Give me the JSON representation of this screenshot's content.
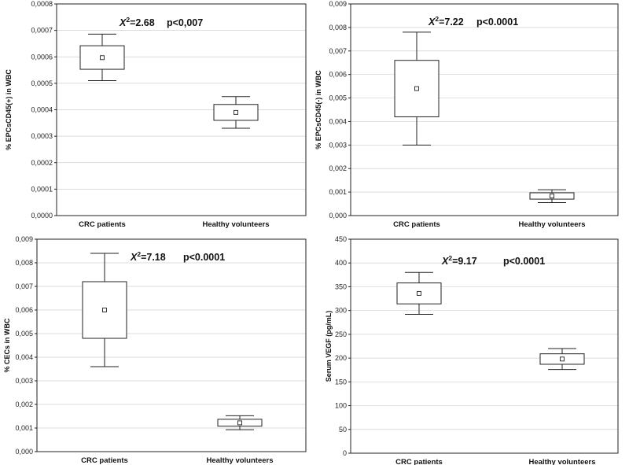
{
  "chart_data": [
    {
      "type": "box",
      "ylabel": "% EPCsCD45(+) in WBC",
      "ylim": [
        0,
        0.0008
      ],
      "yticks": [
        0,
        0.0001,
        0.0002,
        0.0003,
        0.0004,
        0.0005,
        0.0006,
        0.0007,
        0.0008
      ],
      "ytick_labels": [
        "0,0000",
        "0,0001",
        "0,0002",
        "0,0003",
        "0,0004",
        "0,0005",
        "0,0006",
        "0,0007",
        "0,0008"
      ],
      "categories": [
        "CRC patients",
        "Healthy volunteers"
      ],
      "boxes": [
        {
          "whisker_low": 0.00051,
          "q1": 0.000553,
          "mid": 0.000597,
          "q3": 0.000642,
          "whisker_high": 0.000686
        },
        {
          "whisker_low": 0.00033,
          "q1": 0.00036,
          "mid": 0.00039,
          "q3": 0.00042,
          "whisker_high": 0.00045
        }
      ],
      "stat_symbol": "X",
      "stat_sup": "2",
      "stat_value": "=2.68",
      "p_text": "p<0,007",
      "grid": true
    },
    {
      "type": "box",
      "ylabel": "% EPCsCD45(-) in WBC",
      "ylim": [
        0,
        0.009
      ],
      "yticks": [
        0,
        0.001,
        0.002,
        0.003,
        0.004,
        0.005,
        0.006,
        0.007,
        0.008,
        0.009
      ],
      "ytick_labels": [
        "0,000",
        "0,001",
        "0,002",
        "0,003",
        "0,004",
        "0,005",
        "0,006",
        "0,007",
        "0,008",
        "0,009"
      ],
      "categories": [
        "CRC patients",
        "Healthy volunteers"
      ],
      "boxes": [
        {
          "whisker_low": 0.003,
          "q1": 0.0042,
          "mid": 0.0054,
          "q3": 0.0066,
          "whisker_high": 0.0078
        },
        {
          "whisker_low": 0.00055,
          "q1": 0.0007,
          "mid": 0.00083,
          "q3": 0.00097,
          "whisker_high": 0.0011
        }
      ],
      "stat_symbol": "X",
      "stat_sup": "2",
      "stat_value": "=7.22",
      "p_text": "p<0.0001",
      "grid": true
    },
    {
      "type": "box",
      "ylabel": "% CECs in WBC",
      "ylim": [
        0,
        0.009
      ],
      "yticks": [
        0,
        0.001,
        0.002,
        0.003,
        0.004,
        0.005,
        0.006,
        0.007,
        0.008,
        0.009
      ],
      "ytick_labels": [
        "0,000",
        "0,001",
        "0,002",
        "0,003",
        "0,004",
        "0,005",
        "0,006",
        "0,007",
        "0,008",
        "0,009"
      ],
      "categories": [
        "CRC patients",
        "Healthy volunteers"
      ],
      "boxes": [
        {
          "whisker_low": 0.0036,
          "q1": 0.0048,
          "mid": 0.006,
          "q3": 0.0072,
          "whisker_high": 0.0084
        },
        {
          "whisker_low": 0.00093,
          "q1": 0.00108,
          "mid": 0.00122,
          "q3": 0.00137,
          "whisker_high": 0.00152
        }
      ],
      "stat_symbol": "X",
      "stat_sup": "2",
      "stat_value": "=7.18",
      "p_text": "p<0.0001",
      "grid": true
    },
    {
      "type": "box",
      "ylabel": "Serum VEGF (pg/mL)",
      "ylim": [
        0,
        450
      ],
      "yticks": [
        0,
        50,
        100,
        150,
        200,
        250,
        300,
        350,
        400,
        450
      ],
      "ytick_labels": [
        "0",
        "50",
        "100",
        "150",
        "200",
        "250",
        "300",
        "350",
        "400",
        "450"
      ],
      "categories": [
        "CRC patients",
        "Healthy volunteers"
      ],
      "boxes": [
        {
          "whisker_low": 292,
          "q1": 314,
          "mid": 336,
          "q3": 358,
          "whisker_high": 380
        },
        {
          "whisker_low": 176,
          "q1": 187,
          "mid": 198,
          "q3": 209,
          "whisker_high": 220
        }
      ],
      "stat_symbol": "X",
      "stat_sup": "2",
      "stat_value": "=9.17",
      "p_text": "p<0.0001",
      "grid": true
    }
  ]
}
